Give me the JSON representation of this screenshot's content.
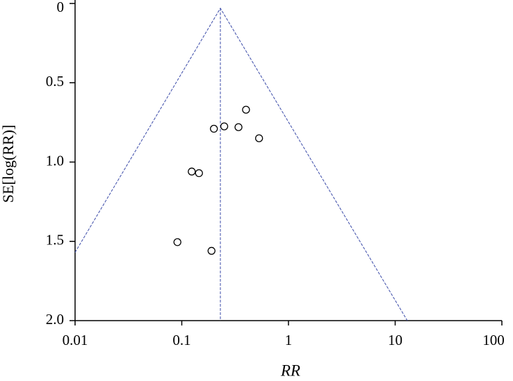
{
  "chart_data": {
    "type": "scatter",
    "y_label": "SE[log(RR)]",
    "x_label": "RR",
    "x": [
      0.4,
      0.25,
      0.2,
      0.34,
      0.53,
      0.124,
      0.145,
      0.091,
      0.19
    ],
    "y": [
      0.67,
      0.775,
      0.79,
      0.78,
      0.85,
      1.06,
      1.07,
      1.505,
      1.56
    ],
    "lines": [
      {
        "x": [
          0.01,
          0.23,
          13
        ],
        "y": [
          1.57,
          0.03,
          2.0
        ]
      },
      {
        "x": [
          0.23,
          0.23
        ],
        "y": [
          0.03,
          2.0
        ]
      }
    ],
    "line_color": "#3a4aa8",
    "point_color": "#000000",
    "log_x": true,
    "invert_y": true,
    "xlim": [
      0.01,
      100
    ],
    "ylim": [
      0,
      2
    ],
    "xticks": [
      0.01,
      0.1,
      1,
      10,
      100
    ],
    "yticks": [
      0,
      0.5,
      {
        "value": 1,
        "label": "1.0"
      },
      1.5,
      {
        "value": 2,
        "label": "2.0"
      }
    ]
  }
}
